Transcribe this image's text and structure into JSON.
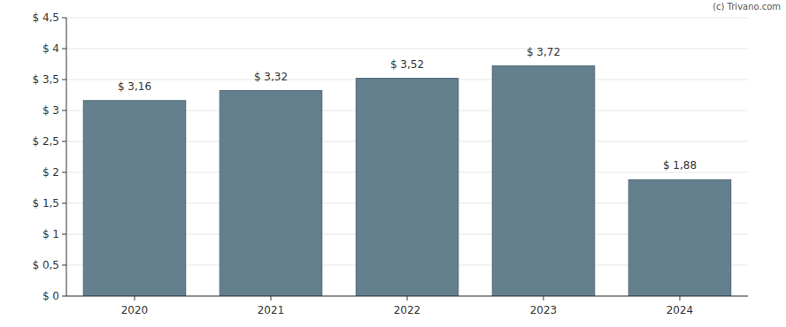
{
  "chart_data": {
    "type": "bar",
    "categories": [
      "2020",
      "2021",
      "2022",
      "2023",
      "2024"
    ],
    "values": [
      3.16,
      3.32,
      3.52,
      3.72,
      1.88
    ],
    "value_labels": [
      "$ 3,16",
      "$ 3,32",
      "$ 3,52",
      "$ 3,72",
      "$ 1,88"
    ],
    "data_labels": true,
    "color": "#64808f",
    "ylim": [
      0,
      4.5
    ],
    "yticks": [
      {
        "value": 0,
        "label": "$ 0"
      },
      {
        "value": 0.5,
        "label": "$ 0,5"
      },
      {
        "value": 1,
        "label": "$ 1"
      },
      {
        "value": 1.5,
        "label": "$ 1,5"
      },
      {
        "value": 2,
        "label": "$ 2"
      },
      {
        "value": 2.5,
        "label": "$ 2,5"
      },
      {
        "value": 3,
        "label": "$ 3"
      },
      {
        "value": 3.5,
        "label": "$ 3,5"
      },
      {
        "value": 4,
        "label": "$ 4"
      },
      {
        "value": 4.5,
        "label": "$ 4,5"
      }
    ],
    "grid": true,
    "annotations": [
      "(c) Trivano.com"
    ]
  }
}
